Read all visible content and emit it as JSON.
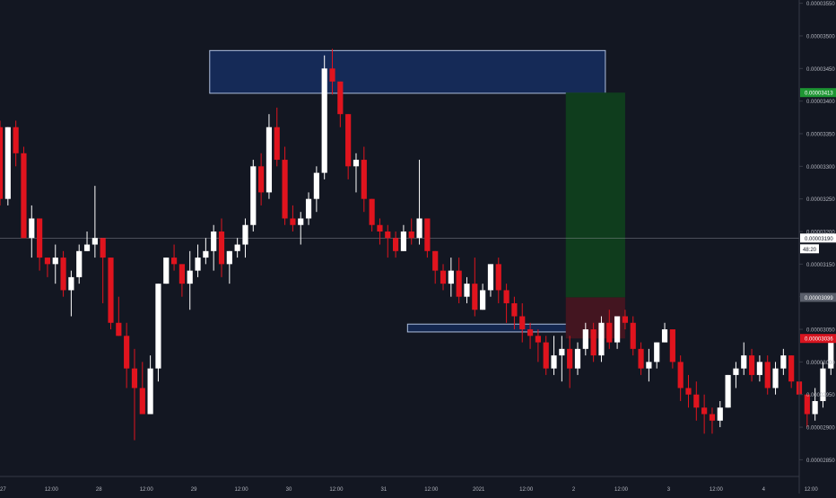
{
  "colors": {
    "background": "#131722",
    "axis_line": "#363a45",
    "axis_text": "#b2b5be",
    "bull": "#ffffff",
    "bear": "#e0141e",
    "supply_zone_fill": "#152a57",
    "supply_zone_border": "#aebfde",
    "target_fill": "#0f3d1d",
    "stop_fill": "#431520",
    "crosshair": "#9598a1",
    "target_label": "#1e9633",
    "entry_label": "#5a5f6b",
    "stop_label": "#d8141f",
    "price_label": "#ffffff"
  },
  "chart_data": {
    "type": "candlestick",
    "x_tick_labels": [
      "27",
      "12:00",
      "28",
      "12:00",
      "29",
      "12:00",
      "30",
      "12:00",
      "31",
      "12:00",
      "2021",
      "12:00",
      "2",
      "12:00",
      "3",
      "12:00",
      "4",
      "12:00"
    ],
    "y_tick_labels": [
      "0.00003550",
      "0.00003500",
      "0.00003450",
      "0.00003400",
      "0.00003350",
      "0.00003300",
      "0.00003250",
      "0.00003200",
      "0.00003150",
      "0.00003100",
      "0.00003050",
      "0.00003000",
      "0.00002950",
      "0.00002900",
      "0.00002850"
    ],
    "y_ticks": [
      3.55e-05,
      3.5e-05,
      3.45e-05,
      3.4e-05,
      3.35e-05,
      3.3e-05,
      3.25e-05,
      3.2e-05,
      3.15e-05,
      3.1e-05,
      3.05e-05,
      3e-05,
      2.95e-05,
      2.9e-05,
      2.85e-05
    ],
    "ylim": [
      2.8244e-05,
      3.555e-05
    ],
    "x_range": [
      "2020-12-26T23:00",
      "2021-01-04T09:00"
    ],
    "candle_interval_hours": 2,
    "first_candle_time": "2020-12-26T23:00",
    "candles": [
      [
        3.36e-05,
        3.37e-05,
        3.24e-05,
        3.25e-05
      ],
      [
        3.25e-05,
        3.36e-05,
        3.24e-05,
        3.36e-05
      ],
      [
        3.36e-05,
        3.37e-05,
        3.3e-05,
        3.32e-05
      ],
      [
        3.32e-05,
        3.33e-05,
        3.19e-05,
        3.19e-05
      ],
      [
        3.19e-05,
        3.24e-05,
        3.16e-05,
        3.22e-05
      ],
      [
        3.22e-05,
        3.22e-05,
        3.14e-05,
        3.16e-05
      ],
      [
        3.16e-05,
        3.16e-05,
        3.13e-05,
        3.15e-05
      ],
      [
        3.15e-05,
        3.18e-05,
        3.12e-05,
        3.16e-05
      ],
      [
        3.16e-05,
        3.17e-05,
        3.1e-05,
        3.11e-05
      ],
      [
        3.11e-05,
        3.14e-05,
        3.07e-05,
        3.13e-05
      ],
      [
        3.13e-05,
        3.18e-05,
        3.12e-05,
        3.17e-05
      ],
      [
        3.17e-05,
        3.2e-05,
        3.17e-05,
        3.18e-05
      ],
      [
        3.18e-05,
        3.27e-05,
        3.16e-05,
        3.19e-05
      ],
      [
        3.19e-05,
        3.19e-05,
        3.09e-05,
        3.16e-05
      ],
      [
        3.16e-05,
        3.16e-05,
        3.05e-05,
        3.06e-05
      ],
      [
        3.06e-05,
        3.1e-05,
        3.04e-05,
        3.04e-05
      ],
      [
        3.04e-05,
        3.06e-05,
        2.96e-05,
        2.99e-05
      ],
      [
        2.99e-05,
        3.02e-05,
        2.88e-05,
        2.96e-05
      ],
      [
        2.96e-05,
        3e-05,
        2.92e-05,
        2.92e-05
      ],
      [
        2.92e-05,
        3.01e-05,
        2.92e-05,
        2.99e-05
      ],
      [
        2.99e-05,
        3.12e-05,
        2.97e-05,
        3.12e-05
      ],
      [
        3.12e-05,
        3.16e-05,
        3.12e-05,
        3.16e-05
      ],
      [
        3.16e-05,
        3.18e-05,
        3.14e-05,
        3.15e-05
      ],
      [
        3.15e-05,
        3.15e-05,
        3.1e-05,
        3.12e-05
      ],
      [
        3.12e-05,
        3.17e-05,
        3.08e-05,
        3.14e-05
      ],
      [
        3.14e-05,
        3.18e-05,
        3.13e-05,
        3.16e-05
      ],
      [
        3.16e-05,
        3.19e-05,
        3.15e-05,
        3.17e-05
      ],
      [
        3.17e-05,
        3.21e-05,
        3.14e-05,
        3.2e-05
      ],
      [
        3.2e-05,
        3.22e-05,
        3.13e-05,
        3.15e-05
      ],
      [
        3.15e-05,
        3.17e-05,
        3.12e-05,
        3.17e-05
      ],
      [
        3.17e-05,
        3.19e-05,
        3.16e-05,
        3.18e-05
      ],
      [
        3.18e-05,
        3.22e-05,
        3.16e-05,
        3.21e-05
      ],
      [
        3.21e-05,
        3.31e-05,
        3.2e-05,
        3.3e-05
      ],
      [
        3.3e-05,
        3.32e-05,
        3.24e-05,
        3.26e-05
      ],
      [
        3.26e-05,
        3.38e-05,
        3.25e-05,
        3.36e-05
      ],
      [
        3.36e-05,
        3.39e-05,
        3.3e-05,
        3.31e-05
      ],
      [
        3.31e-05,
        3.33e-05,
        3.21e-05,
        3.22e-05
      ],
      [
        3.22e-05,
        3.24e-05,
        3.2e-05,
        3.21e-05
      ],
      [
        3.21e-05,
        3.23e-05,
        3.18e-05,
        3.22e-05
      ],
      [
        3.22e-05,
        3.26e-05,
        3.21e-05,
        3.25e-05
      ],
      [
        3.25e-05,
        3.3e-05,
        3.23e-05,
        3.29e-05
      ],
      [
        3.29e-05,
        3.47e-05,
        3.28e-05,
        3.45e-05
      ],
      [
        3.45e-05,
        3.48e-05,
        3.41e-05,
        3.43e-05
      ],
      [
        3.43e-05,
        3.43e-05,
        3.36e-05,
        3.38e-05
      ],
      [
        3.38e-05,
        3.38e-05,
        3.28e-05,
        3.3e-05
      ],
      [
        3.3e-05,
        3.32e-05,
        3.26e-05,
        3.31e-05
      ],
      [
        3.31e-05,
        3.33e-05,
        3.23e-05,
        3.25e-05
      ],
      [
        3.25e-05,
        3.25e-05,
        3.2e-05,
        3.21e-05
      ],
      [
        3.21e-05,
        3.22e-05,
        3.18e-05,
        3.2e-05
      ],
      [
        3.2e-05,
        3.21e-05,
        3.16e-05,
        3.19e-05
      ],
      [
        3.19e-05,
        3.2e-05,
        3.16e-05,
        3.17e-05
      ],
      [
        3.17e-05,
        3.21e-05,
        3.17e-05,
        3.2e-05
      ],
      [
        3.2e-05,
        3.22e-05,
        3.18e-05,
        3.19e-05
      ],
      [
        3.19e-05,
        3.31e-05,
        3.18e-05,
        3.22e-05
      ],
      [
        3.22e-05,
        3.22e-05,
        3.16e-05,
        3.17e-05
      ],
      [
        3.17e-05,
        3.17e-05,
        3.12e-05,
        3.14e-05
      ],
      [
        3.14e-05,
        3.15e-05,
        3.11e-05,
        3.12e-05
      ],
      [
        3.12e-05,
        3.16e-05,
        3.1e-05,
        3.14e-05
      ],
      [
        3.14e-05,
        3.16e-05,
        3.09e-05,
        3.1e-05
      ],
      [
        3.1e-05,
        3.13e-05,
        3.09e-05,
        3.12e-05
      ],
      [
        3.12e-05,
        3.16e-05,
        3.07e-05,
        3.08e-05
      ],
      [
        3.08e-05,
        3.12e-05,
        3.08e-05,
        3.11e-05
      ],
      [
        3.11e-05,
        3.15e-05,
        3.1e-05,
        3.15e-05
      ],
      [
        3.15e-05,
        3.16e-05,
        3.09e-05,
        3.11e-05
      ],
      [
        3.11e-05,
        3.12e-05,
        3.06e-05,
        3.09e-05
      ],
      [
        3.09e-05,
        3.1e-05,
        3.05e-05,
        3.07e-05
      ],
      [
        3.07e-05,
        3.09e-05,
        3.03e-05,
        3.05e-05
      ],
      [
        3.05e-05,
        3.06e-05,
        3.02e-05,
        3.04e-05
      ],
      [
        3.04e-05,
        3.05e-05,
        3e-05,
        3.03e-05
      ],
      [
        3.03e-05,
        3.04e-05,
        2.98e-05,
        2.99e-05
      ],
      [
        2.99e-05,
        3.04e-05,
        2.98e-05,
        3.01e-05
      ],
      [
        3.01e-05,
        3.04e-05,
        2.97e-05,
        3.02e-05
      ],
      [
        3.02e-05,
        3.04e-05,
        2.96e-05,
        2.99e-05
      ],
      [
        2.99e-05,
        3.03e-05,
        2.98e-05,
        3.02e-05
      ],
      [
        3.02e-05,
        3.06e-05,
        3.01e-05,
        3.05e-05
      ],
      [
        3.05e-05,
        3.06e-05,
        3e-05,
        3.01e-05
      ],
      [
        3.01e-05,
        3.07e-05,
        3e-05,
        3.06e-05
      ],
      [
        3.06e-05,
        3.08e-05,
        3.02e-05,
        3.03e-05
      ],
      [
        3.03e-05,
        3.07e-05,
        3.02e-05,
        3.07e-05
      ],
      [
        3.07e-05,
        3.08e-05,
        3.05e-05,
        3.06e-05
      ],
      [
        3.06e-05,
        3.07e-05,
        3.01e-05,
        3.02e-05
      ],
      [
        3.02e-05,
        3.03e-05,
        2.98e-05,
        2.99e-05
      ],
      [
        2.99e-05,
        3.02e-05,
        2.97e-05,
        3e-05
      ],
      [
        3e-05,
        3.03e-05,
        2.99e-05,
        3.03e-05
      ],
      [
        3.03e-05,
        3.06e-05,
        3.03e-05,
        3.05e-05
      ],
      [
        3.05e-05,
        3.05e-05,
        2.99e-05,
        3e-05
      ],
      [
        3e-05,
        3.01e-05,
        2.94e-05,
        2.96e-05
      ],
      [
        2.96e-05,
        2.98e-05,
        2.93e-05,
        2.95e-05
      ],
      [
        2.95e-05,
        2.97e-05,
        2.91e-05,
        2.93e-05
      ],
      [
        2.93e-05,
        2.95e-05,
        2.89e-05,
        2.92e-05
      ],
      [
        2.92e-05,
        2.93e-05,
        2.89e-05,
        2.91e-05
      ],
      [
        2.91e-05,
        2.94e-05,
        2.9e-05,
        2.93e-05
      ],
      [
        2.93e-05,
        2.98e-05,
        2.93e-05,
        2.98e-05
      ],
      [
        2.98e-05,
        3e-05,
        2.96e-05,
        2.99e-05
      ],
      [
        2.99e-05,
        3.03e-05,
        2.98e-05,
        3.01e-05
      ],
      [
        3.01e-05,
        3.02e-05,
        2.97e-05,
        2.98e-05
      ],
      [
        2.98e-05,
        3.01e-05,
        2.97e-05,
        3e-05
      ],
      [
        3e-05,
        3.01e-05,
        2.95e-05,
        2.96e-05
      ],
      [
        2.96e-05,
        3e-05,
        2.95e-05,
        2.99e-05
      ],
      [
        2.99e-05,
        3.02e-05,
        2.98e-05,
        3.01e-05
      ],
      [
        3.01e-05,
        3.01e-05,
        2.96e-05,
        2.97e-05
      ],
      [
        2.97e-05,
        2.98e-05,
        2.94e-05,
        2.95e-05
      ],
      [
        2.95e-05,
        2.95e-05,
        2.9e-05,
        2.92e-05
      ],
      [
        2.92e-05,
        2.96e-05,
        2.91e-05,
        2.94e-05
      ],
      [
        2.94e-05,
        3e-05,
        2.93e-05,
        2.99e-05
      ],
      [
        2.99e-05,
        3.04e-05,
        2.98e-05,
        3.04e-05
      ],
      [
        3.04e-05,
        3.06e-05,
        3.02e-05,
        3.03e-05
      ],
      [
        3.03e-05,
        3.05e-05,
        3.01e-05,
        3.04e-05
      ],
      [
        3.04e-05,
        3.05e-05,
        3.01e-05,
        3.02e-05
      ],
      [
        3.02e-05,
        3.03e-05,
        2.98e-05,
        2.99e-05
      ],
      [
        2.99e-05,
        3.14e-05,
        2.98e-05,
        3.13e-05
      ],
      [
        3.13e-05,
        3.15e-05,
        3.06e-05,
        3.07e-05
      ],
      [
        3.07e-05,
        3.08e-05,
        3.04e-05,
        3.06e-05
      ],
      [
        3.06e-05,
        3.11e-05,
        3.05e-05,
        3.1e-05
      ],
      [
        3.1e-05,
        3.19e-05,
        3.09e-05,
        3.18e-05
      ],
      [
        3.18e-05,
        3.2e-05,
        3.17e-05,
        3.19e-05
      ]
    ],
    "zones": [
      {
        "kind": "supply",
        "x0": "2020-12-29T04:00",
        "x1": "2021-01-02T08:00",
        "y0": 3.412e-05,
        "y1": 3.4775e-05
      },
      {
        "kind": "demand",
        "x0": "2020-12-31T06:00",
        "x1": "2021-01-02T08:00",
        "y0": 3.046e-05,
        "y1": 3.058e-05
      },
      {
        "kind": "target",
        "x0": "2021-01-01T22:00",
        "x1": "2021-01-02T13:00",
        "y0": 3.099e-05,
        "y1": 3.413e-05
      },
      {
        "kind": "stop",
        "x0": "2021-01-01T22:00",
        "x1": "2021-01-02T13:00",
        "y0": 3.036e-05,
        "y1": 3.099e-05
      }
    ],
    "price_labels": {
      "target": "0.00003413",
      "current": "0.00003190",
      "countdown": "48:20",
      "entry": "0.00003099",
      "stop": "0.00003036"
    },
    "current_price": 3.19e-05,
    "target_price": 3.413e-05,
    "entry_price": 3.099e-05,
    "stop_price": 3.036e-05,
    "grid": false
  }
}
